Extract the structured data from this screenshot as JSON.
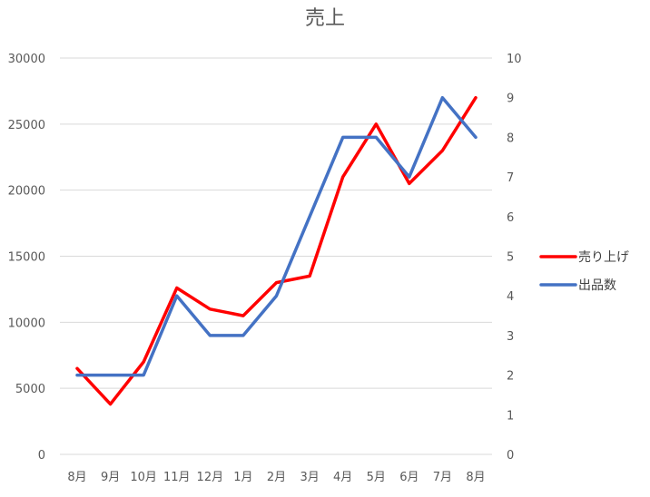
{
  "chart_data": {
    "type": "line",
    "title": "売上",
    "xlabel": "",
    "ylabel": "",
    "categories": [
      "8月",
      "9月",
      "10月",
      "11月",
      "12月",
      "1月",
      "2月",
      "3月",
      "4月",
      "5月",
      "6月",
      "7月",
      "8月"
    ],
    "ylim": [
      0,
      30000
    ],
    "y2lim": [
      0,
      10
    ],
    "yticks": [
      "0",
      "5000",
      "10000",
      "15000",
      "20000",
      "25000",
      "30000"
    ],
    "y2ticks": [
      "0",
      "1",
      "2",
      "3",
      "4",
      "5",
      "6",
      "7",
      "8",
      "9",
      "10"
    ],
    "grid": true,
    "legend": "right",
    "series": [
      {
        "name": "売り上げ",
        "axis": "left",
        "color": "#FF0000",
        "values": [
          6500,
          3800,
          7000,
          12600,
          11000,
          10500,
          13000,
          13500,
          21000,
          25000,
          20500,
          23000,
          27000
        ]
      },
      {
        "name": "出品数",
        "axis": "right",
        "color": "#4472C4",
        "values": [
          2,
          2,
          2,
          4,
          3,
          3,
          4,
          6,
          8,
          8,
          7,
          9,
          8
        ]
      }
    ]
  }
}
